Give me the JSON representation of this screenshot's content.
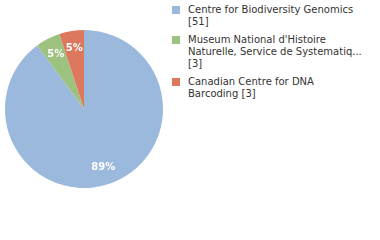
{
  "chart_data": {
    "type": "pie",
    "categories": [
      "Centre for Biodiversity Genomics [51]",
      "Museum National d'Histoire Naturelle, Service de Systematiq... [3]",
      "Canadian Centre for DNA Barcoding [3]"
    ],
    "values": [
      89,
      5,
      5
    ],
    "value_labels": [
      "89%",
      "5%",
      "5%"
    ],
    "colors": [
      "#9bb8dd",
      "#9dc27f",
      "#dd785e"
    ],
    "data_labels": true,
    "legend": "right"
  }
}
